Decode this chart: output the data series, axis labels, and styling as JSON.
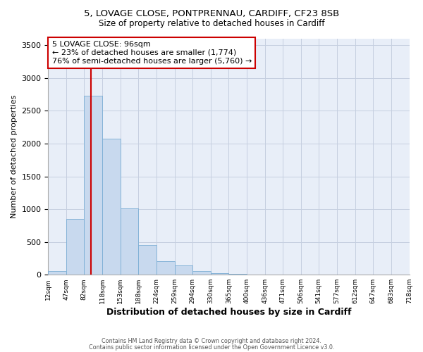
{
  "title1": "5, LOVAGE CLOSE, PONTPRENNAU, CARDIFF, CF23 8SB",
  "title2": "Size of property relative to detached houses in Cardiff",
  "xlabel": "Distribution of detached houses by size in Cardiff",
  "ylabel": "Number of detached properties",
  "bar_color": "#c8d9ee",
  "bar_edge_color": "#7aadd4",
  "bg_color": "#ffffff",
  "plot_bg_color": "#e8eef8",
  "grid_color": "#c5cfe0",
  "vline_color": "#cc0000",
  "vline_x": 96,
  "annotation_text": "5 LOVAGE CLOSE: 96sqm\n← 23% of detached houses are smaller (1,774)\n76% of semi-detached houses are larger (5,760) →",
  "annotation_box_color": "#ffffff",
  "annotation_box_edge": "#cc0000",
  "bin_edges": [
    12,
    47,
    82,
    118,
    153,
    188,
    224,
    259,
    294,
    330,
    365,
    400,
    436,
    471,
    506,
    541,
    577,
    612,
    647,
    683,
    718
  ],
  "bin_heights": [
    55,
    850,
    2730,
    2075,
    1010,
    450,
    210,
    140,
    60,
    25,
    18,
    5,
    3,
    2,
    1,
    1,
    0,
    0,
    0,
    0
  ],
  "ylim": [
    0,
    3600
  ],
  "yticks": [
    0,
    500,
    1000,
    1500,
    2000,
    2500,
    3000,
    3500
  ],
  "footnote1": "Contains HM Land Registry data © Crown copyright and database right 2024.",
  "footnote2": "Contains public sector information licensed under the Open Government Licence v3.0."
}
